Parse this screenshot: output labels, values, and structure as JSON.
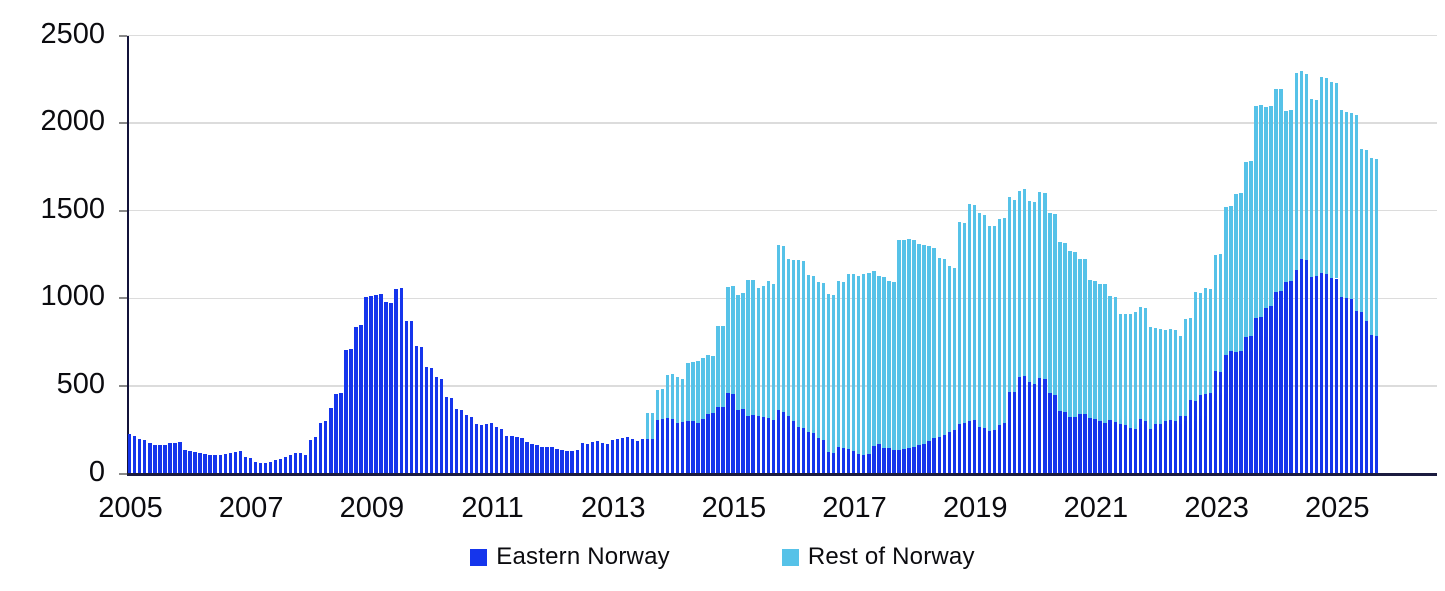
{
  "chart_data": {
    "type": "bar",
    "stacked": true,
    "title": "",
    "x_unit": "month",
    "x_range_start": "2005-01",
    "x_range_end": "2025-09",
    "x_tick_labels": [
      "2005",
      "2007",
      "2009",
      "2011",
      "2013",
      "2015",
      "2017",
      "2019",
      "2021",
      "2023",
      "2025"
    ],
    "y_ticks": [
      0,
      500,
      1000,
      1500,
      2000,
      2500
    ],
    "ylim": [
      0,
      2500
    ],
    "grid": "horizontal",
    "legend_position": "bottom",
    "colors": {
      "eastern": "#1535ec",
      "rest": "#56c2e8",
      "gridline": "#dcdcdc",
      "axis": "#13133a",
      "text": "#0b0b0f"
    },
    "series": [
      {
        "name": "Eastern Norway",
        "color": "#1535ec",
        "values": [
          225,
          215,
          198,
          190,
          175,
          165,
          160,
          165,
          172,
          176,
          180,
          135,
          130,
          123,
          115,
          109,
          106,
          108,
          106,
          114,
          119,
          125,
          129,
          96,
          86,
          68,
          58,
          62,
          68,
          77,
          82,
          96,
          106,
          115,
          119,
          106,
          190,
          210,
          288,
          298,
          375,
          452,
          460,
          705,
          710,
          838,
          845,
          1008,
          1013,
          1019,
          1023,
          981,
          975,
          1055,
          1060,
          869,
          873,
          725,
          721,
          610,
          604,
          548,
          537,
          437,
          431,
          369,
          360,
          335,
          321,
          283,
          279,
          283,
          287,
          263,
          254,
          215,
          212,
          206,
          200,
          177,
          170,
          160,
          150,
          154,
          154,
          138,
          135,
          131,
          129,
          135,
          173,
          167,
          177,
          183,
          173,
          167,
          192,
          198,
          202,
          206,
          196,
          183,
          196,
          199,
          195,
          303,
          309,
          316,
          312,
          289,
          293,
          297,
          297,
          287,
          312,
          340,
          348,
          377,
          377,
          457,
          455,
          361,
          367,
          327,
          332,
          329,
          325,
          318,
          308,
          361,
          352,
          327,
          300,
          266,
          257,
          238,
          232,
          205,
          194,
          124,
          118,
          152,
          143,
          137,
          129,
          110,
          105,
          114,
          156,
          171,
          148,
          143,
          133,
          135,
          140,
          145,
          150,
          160,
          170,
          185,
          200,
          210,
          220,
          235,
          250,
          284,
          290,
          299,
          303,
          265,
          261,
          240,
          248,
          279,
          287,
          465,
          463,
          553,
          558,
          521,
          513,
          547,
          541,
          460,
          450,
          358,
          350,
          320,
          325,
          340,
          340,
          318,
          313,
          299,
          288,
          303,
          294,
          284,
          275,
          261,
          256,
          313,
          299,
          256,
          284,
          280,
          302,
          308,
          302,
          328,
          328,
          420,
          413,
          449,
          452,
          459,
          585,
          581,
          678,
          700,
          695,
          700,
          780,
          785,
          890,
          895,
          947,
          955,
          1035,
          1040,
          1095,
          1100,
          1160,
          1225,
          1217,
          1123,
          1128,
          1142,
          1136,
          1117,
          1113,
          1009,
          1004,
          996,
          928,
          921,
          872,
          789,
          783
        ]
      },
      {
        "name": "Rest of Norway",
        "color": "#56c2e8",
        "values": [
          0,
          0,
          0,
          0,
          0,
          0,
          0,
          0,
          0,
          0,
          0,
          0,
          0,
          0,
          0,
          0,
          0,
          0,
          0,
          0,
          0,
          0,
          0,
          0,
          0,
          0,
          0,
          0,
          0,
          0,
          0,
          0,
          0,
          0,
          0,
          0,
          0,
          0,
          0,
          0,
          0,
          0,
          0,
          0,
          0,
          0,
          0,
          0,
          0,
          0,
          0,
          0,
          0,
          0,
          0,
          0,
          0,
          0,
          0,
          0,
          0,
          0,
          0,
          0,
          0,
          0,
          0,
          0,
          0,
          0,
          0,
          0,
          0,
          0,
          0,
          0,
          0,
          0,
          0,
          0,
          0,
          0,
          0,
          0,
          0,
          0,
          0,
          0,
          0,
          0,
          0,
          0,
          0,
          0,
          0,
          0,
          0,
          0,
          0,
          0,
          0,
          0,
          0,
          147,
          151,
          175,
          173,
          247,
          255,
          263,
          245,
          332,
          338,
          357,
          348,
          339,
          325,
          463,
          463,
          610,
          616,
          658,
          666,
          779,
          770,
          729,
          746,
          778,
          775,
          941,
          944,
          899,
          920,
          950,
          955,
          893,
          893,
          888,
          893,
          898,
          899,
          946,
          950,
          999,
          1011,
          1015,
          1033,
          1031,
          1001,
          955,
          971,
          957,
          961,
          1195,
          1194,
          1192,
          1184,
          1148,
          1132,
          1111,
          1089,
          1022,
          1005,
          948,
          925,
          1150,
          1138,
          1239,
          1229,
          1220,
          1216,
          1175,
          1162,
          1174,
          1172,
          1114,
          1099,
          1057,
          1067,
          1032,
          1036,
          1059,
          1059,
          1027,
          1031,
          964,
          966,
          949,
          940,
          887,
          882,
          784,
          786,
          784,
          792,
          710,
          714,
          629,
          634,
          652,
          663,
          638,
          648,
          581,
          546,
          544,
          516,
          516,
          516,
          458,
          553,
          470,
          625,
          583,
          605,
          592,
          661,
          673,
          841,
          825,
          900,
          900,
          1000,
          999,
          1208,
          1207,
          1146,
          1143,
          1158,
          1157,
          973,
          974,
          1128,
          1075,
          1066,
          1013,
          1001,
          1122,
          1119,
          1119,
          1117,
          1067,
          1062,
          1061,
          1119,
          932,
          973,
          1013,
          1013
        ]
      }
    ]
  },
  "legend": {
    "items": [
      {
        "label": "Eastern Norway",
        "color": "#1535ec"
      },
      {
        "label": "Rest of Norway",
        "color": "#56c2e8"
      }
    ]
  }
}
